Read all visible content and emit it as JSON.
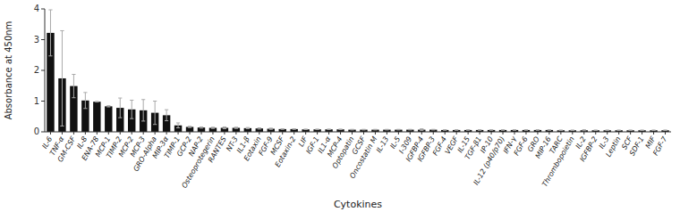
{
  "chart_data": {
    "type": "bar",
    "categories": [
      "IL-6",
      "TNF-α",
      "GM-CSF",
      "IL-8",
      "ENA-78",
      "MCP-1",
      "TIMP-2",
      "MCP-2",
      "MCP-3",
      "GRO-Alpha",
      "MIP-3α",
      "TIMP-1",
      "GCP-2",
      "NAP-2",
      "Osteoprotegerin",
      "RANTES",
      "NT-3",
      "IL1-β",
      "Eotaxin",
      "FGF-9",
      "MCSF",
      "Eotaxin-2",
      "LIF",
      "IGF-1",
      "IL1-α",
      "MCP-4",
      "Optopatin",
      "GCSF",
      "Oncostatin M",
      "IL-13",
      "IL-5",
      "I-309",
      "IGFBP-4",
      "IGFBP-3",
      "FGF-4",
      "VEGF",
      "IL-15",
      "TGF-β1",
      "IP-10",
      "IL-12 (p40/p70)",
      "IFN-γ",
      "FGF-6",
      "GRO",
      "MIP-16",
      "TARC",
      "Thrombopoietin",
      "IL-2",
      "IGFBP-2",
      "IL-3",
      "Leptin",
      "SCF",
      "SDF-1",
      "MIF",
      "FGF-7"
    ],
    "values": [
      3.22,
      1.74,
      1.49,
      1.02,
      0.98,
      0.83,
      0.78,
      0.73,
      0.7,
      0.62,
      0.54,
      0.21,
      0.16,
      0.14,
      0.13,
      0.13,
      0.13,
      0.12,
      0.11,
      0.1,
      0.09,
      0.09,
      0.08,
      0.08,
      0.08,
      0.08,
      0.07,
      0.07,
      0.07,
      0.07,
      0.07,
      0.07,
      0.07,
      0.07,
      0.06,
      0.06,
      0.06,
      0.06,
      0.06,
      0.06,
      0.06,
      0.06,
      0.06,
      0.06,
      0.05,
      0.05,
      0.05,
      0.05,
      0.05,
      0.05,
      0.05,
      0.05,
      0.05,
      0.05
    ],
    "errors": [
      0.75,
      1.55,
      0.38,
      0.26,
      0.01,
      0.02,
      0.32,
      0.3,
      0.35,
      0.38,
      0.18,
      0.08,
      0.02,
      0.02,
      0.02,
      0.03,
      0.02,
      0.02,
      0.02,
      0.02,
      0.01,
      0.01,
      0.01,
      0.01,
      0.01,
      0.01,
      0.01,
      0.01,
      0.01,
      0.01,
      0.01,
      0.01,
      0.03,
      0.01,
      0.01,
      0.01,
      0.01,
      0.01,
      0.01,
      0.01,
      0.01,
      0.01,
      0.01,
      0.01,
      0.01,
      0.01,
      0.02,
      0.01,
      0.01,
      0.01,
      0.01,
      0.01,
      0.01,
      0.01
    ],
    "color": "#111111",
    "xlabel": "Cytokines",
    "ylabel": "Absorbance at 450nm",
    "ylim": [
      0,
      4.0
    ],
    "yticks": [
      0,
      1,
      2,
      3,
      4
    ],
    "grid": false
  }
}
